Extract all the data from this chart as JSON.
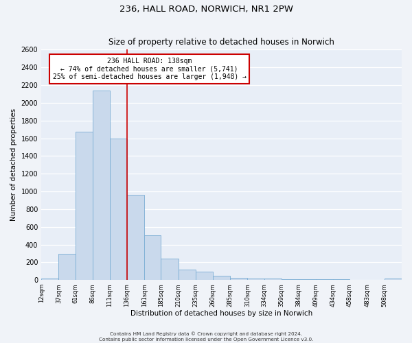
{
  "title1": "236, HALL ROAD, NORWICH, NR1 2PW",
  "title2": "Size of property relative to detached houses in Norwich",
  "xlabel": "Distribution of detached houses by size in Norwich",
  "ylabel": "Number of detached properties",
  "bar_color": "#c9d9ec",
  "bar_edge_color": "#7aadd4",
  "background_color": "#e8eef7",
  "grid_color": "#ffffff",
  "fig_color": "#f0f3f8",
  "vline_x": 136,
  "vline_color": "#cc0000",
  "annotation_title": "236 HALL ROAD: 138sqm",
  "annotation_line1": "← 74% of detached houses are smaller (5,741)",
  "annotation_line2": "25% of semi-detached houses are larger (1,948) →",
  "annotation_box_color": "#ffffff",
  "annotation_box_edge": "#cc0000",
  "bin_edges": [
    12,
    37,
    61,
    86,
    111,
    136,
    161,
    185,
    210,
    235,
    260,
    285,
    310,
    334,
    359,
    384,
    409,
    434,
    458,
    483,
    508
  ],
  "bar_heights": [
    20,
    295,
    1675,
    2140,
    1600,
    960,
    505,
    245,
    120,
    95,
    50,
    25,
    20,
    15,
    10,
    10,
    10,
    10,
    5,
    5,
    15
  ],
  "tick_labels": [
    "12sqm",
    "37sqm",
    "61sqm",
    "86sqm",
    "111sqm",
    "136sqm",
    "161sqm",
    "185sqm",
    "210sqm",
    "235sqm",
    "260sqm",
    "285sqm",
    "310sqm",
    "334sqm",
    "359sqm",
    "384sqm",
    "409sqm",
    "434sqm",
    "458sqm",
    "483sqm",
    "508sqm"
  ],
  "ylim": [
    0,
    2600
  ],
  "yticks": [
    0,
    200,
    400,
    600,
    800,
    1000,
    1200,
    1400,
    1600,
    1800,
    2000,
    2200,
    2400,
    2600
  ],
  "footer1": "Contains HM Land Registry data © Crown copyright and database right 2024.",
  "footer2": "Contains public sector information licensed under the Open Government Licence v3.0."
}
